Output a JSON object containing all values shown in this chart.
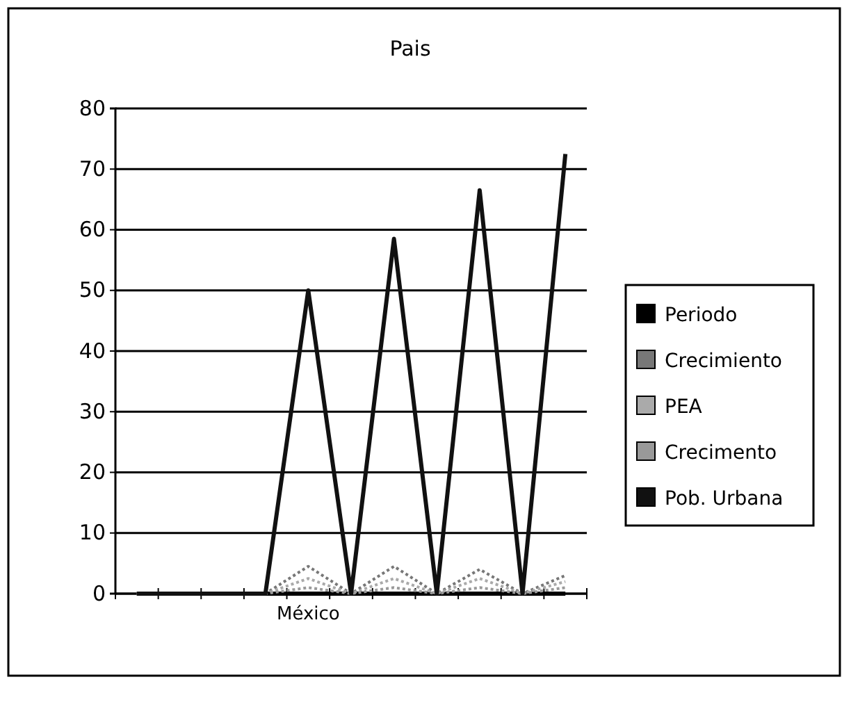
{
  "chart_data": {
    "type": "line",
    "title": "Pais",
    "categories": [
      null,
      null,
      null,
      null,
      "México",
      null,
      null,
      null,
      null,
      null,
      null
    ],
    "series": [
      {
        "name": "Periodo",
        "color": "#000000",
        "line_style": "solid",
        "values": [
          0,
          0,
          0,
          0,
          0,
          0,
          0,
          0,
          0,
          0,
          0
        ]
      },
      {
        "name": "Crecimiento",
        "color": "#777777",
        "line_style": "dotted",
        "values": [
          0,
          0,
          0,
          0,
          4.5,
          0,
          4.5,
          0,
          4,
          0,
          3
        ]
      },
      {
        "name": "PEA",
        "color": "#aaaaaa",
        "line_style": "dotted",
        "values": [
          0,
          0,
          0,
          0,
          2.5,
          0,
          2.5,
          0,
          2.5,
          0,
          2
        ]
      },
      {
        "name": "Crecimento",
        "color": "#999999",
        "line_style": "dotted",
        "values": [
          0,
          0,
          0,
          0,
          1,
          0,
          1,
          0,
          1,
          0,
          1
        ]
      },
      {
        "name": "Pob. Urbana",
        "color": "#111111",
        "line_style": "solid",
        "values": [
          0,
          0,
          0,
          0,
          50,
          0,
          58.5,
          0,
          66.5,
          0,
          72.5
        ]
      }
    ],
    "ylim": [
      0,
      80
    ],
    "yticks": [
      0,
      10,
      20,
      30,
      40,
      50,
      60,
      70,
      80
    ],
    "grid": "y",
    "legend": "right",
    "marker": "none"
  }
}
